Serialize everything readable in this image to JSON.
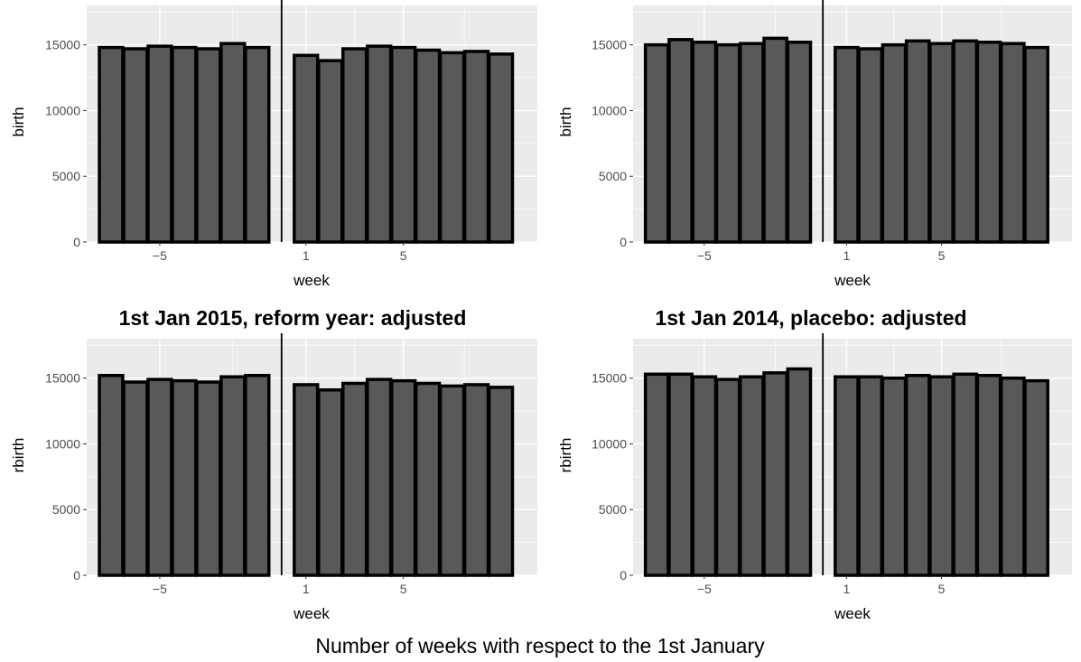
{
  "global_xlabel": "Number of weeks with respect to the 1st January",
  "colors": {
    "panel_bg": "#ebebeb",
    "grid": "#ffffff",
    "bar_fill": "#595959",
    "bar_stroke": "#000000",
    "tick_text": "#4d4d4d"
  },
  "chart_data": [
    {
      "type": "bar",
      "title": "",
      "xlabel": "week",
      "ylabel": "birth",
      "x": [
        -7,
        -6,
        -5,
        -4,
        -3,
        -2,
        -1,
        1,
        2,
        3,
        4,
        5,
        6,
        7,
        8,
        9
      ],
      "values": [
        14800,
        14700,
        14900,
        14800,
        14700,
        15100,
        14800,
        14200,
        13800,
        14700,
        14900,
        14800,
        14600,
        14400,
        14500,
        14300
      ],
      "x_ticks": [
        -5,
        1,
        5
      ],
      "y_ticks": [
        0,
        5000,
        10000,
        15000
      ],
      "ylim": [
        0,
        18000
      ],
      "cutoff_line": true,
      "grid": true
    },
    {
      "type": "bar",
      "title": "",
      "xlabel": "week",
      "ylabel": "birth",
      "x": [
        -7,
        -6,
        -5,
        -4,
        -3,
        -2,
        -1,
        1,
        2,
        3,
        4,
        5,
        6,
        7,
        8,
        9
      ],
      "values": [
        15000,
        15400,
        15200,
        15000,
        15100,
        15500,
        15200,
        14800,
        14700,
        15000,
        15300,
        15100,
        15300,
        15200,
        15100,
        14800
      ],
      "x_ticks": [
        -5,
        1,
        5
      ],
      "y_ticks": [
        0,
        5000,
        10000,
        15000
      ],
      "ylim": [
        0,
        18000
      ],
      "cutoff_line": true,
      "grid": true
    },
    {
      "type": "bar",
      "title": "1st Jan 2015, reform year: adjusted",
      "xlabel": "week",
      "ylabel": "rbirth",
      "x": [
        -7,
        -6,
        -5,
        -4,
        -3,
        -2,
        -1,
        1,
        2,
        3,
        4,
        5,
        6,
        7,
        8,
        9
      ],
      "values": [
        15200,
        14700,
        14900,
        14800,
        14700,
        15100,
        15200,
        14500,
        14100,
        14600,
        14900,
        14800,
        14600,
        14400,
        14500,
        14300
      ],
      "x_ticks": [
        -5,
        1,
        5
      ],
      "y_ticks": [
        0,
        5000,
        10000,
        15000
      ],
      "ylim": [
        0,
        18000
      ],
      "cutoff_line": true,
      "grid": true
    },
    {
      "type": "bar",
      "title": "1st Jan 2014, placebo:  adjusted",
      "xlabel": "week",
      "ylabel": "rbirth",
      "x": [
        -7,
        -6,
        -5,
        -4,
        -3,
        -2,
        -1,
        1,
        2,
        3,
        4,
        5,
        6,
        7,
        8,
        9
      ],
      "values": [
        15300,
        15300,
        15100,
        14900,
        15100,
        15400,
        15700,
        15100,
        15100,
        15000,
        15200,
        15100,
        15300,
        15200,
        15000,
        14800
      ],
      "x_ticks": [
        -5,
        1,
        5
      ],
      "y_ticks": [
        0,
        5000,
        10000,
        15000
      ],
      "ylim": [
        0,
        18000
      ],
      "cutoff_line": true,
      "grid": true
    }
  ]
}
